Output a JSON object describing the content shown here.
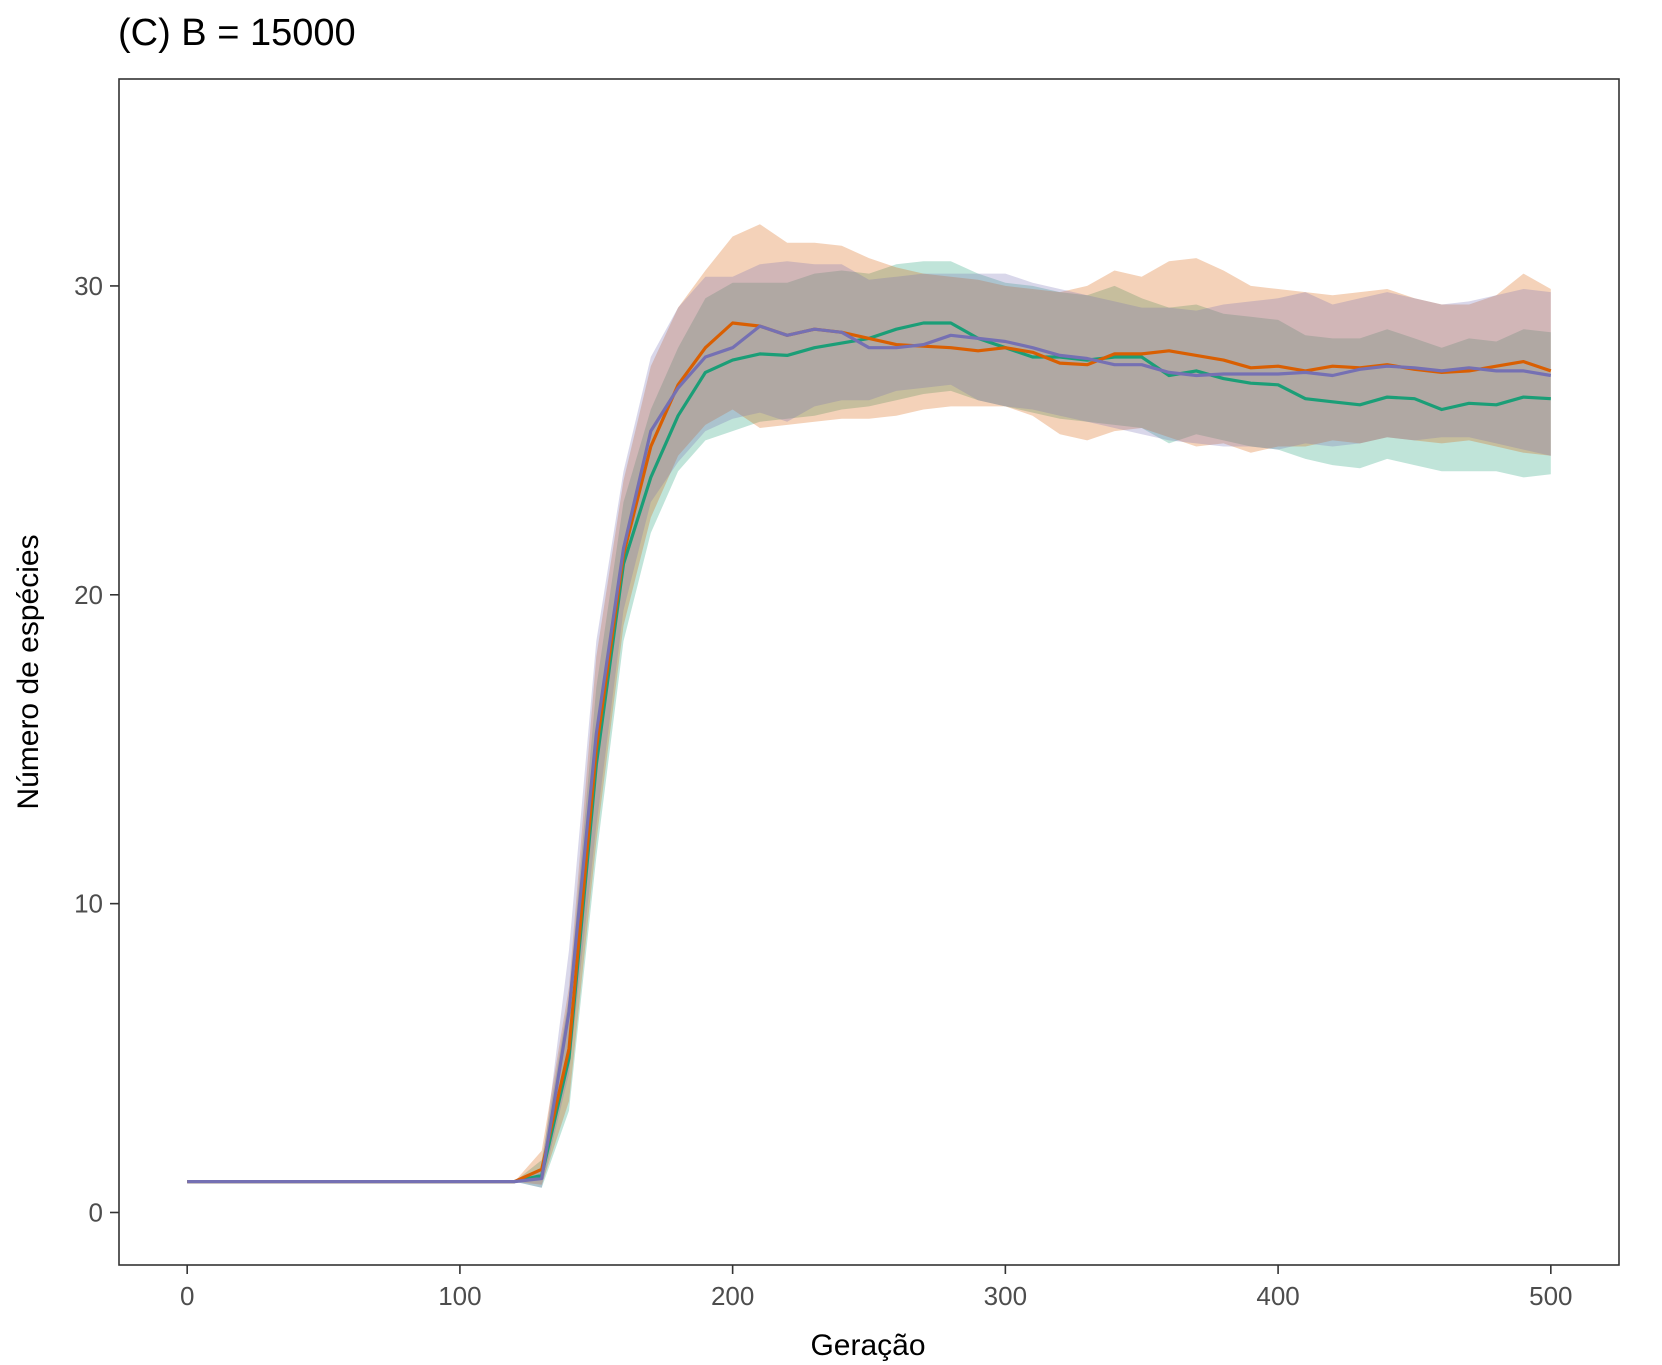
{
  "chart_data": {
    "type": "line",
    "title": "(C) B = 15000",
    "xlabel": "Geração",
    "ylabel": "Número de espécies",
    "xlim": [
      -25,
      525
    ],
    "ylim": [
      -1.7,
      36.7
    ],
    "xticks": [
      0,
      100,
      200,
      300,
      400,
      500
    ],
    "yticks": [
      0,
      10,
      20,
      30
    ],
    "xtick_labels": [
      "0",
      "100",
      "200",
      "300",
      "400",
      "500"
    ],
    "ytick_labels": [
      "0",
      "10",
      "20",
      "30"
    ],
    "grid": false,
    "legend": "none",
    "x": [
      0,
      10,
      20,
      30,
      40,
      50,
      60,
      70,
      80,
      90,
      100,
      110,
      120,
      130,
      140,
      150,
      160,
      170,
      180,
      190,
      200,
      210,
      220,
      230,
      240,
      250,
      260,
      270,
      280,
      290,
      300,
      310,
      320,
      330,
      340,
      350,
      360,
      370,
      380,
      390,
      400,
      410,
      420,
      430,
      440,
      450,
      460,
      470,
      480,
      490,
      500
    ],
    "series": [
      {
        "color": "#1b9e77",
        "values": [
          1,
          1,
          1,
          1,
          1,
          1,
          1,
          1,
          1,
          1,
          1,
          1,
          1,
          1.2,
          5,
          14.5,
          21,
          23.8,
          25.8,
          27.2,
          27.6,
          27.8,
          27.75,
          28,
          28.15,
          28.3,
          28.6,
          28.8,
          28.8,
          28.3,
          28,
          27.7,
          27.7,
          27.6,
          27.7,
          27.7,
          27.1,
          27.25,
          27,
          26.85,
          26.8,
          26.35,
          26.25,
          26.15,
          26.4,
          26.35,
          26,
          26.2,
          26.15,
          26.4,
          26.35
        ],
        "lower": [
          1,
          1,
          1,
          1,
          1,
          1,
          1,
          1,
          1,
          1,
          1,
          1,
          1,
          0.8,
          3.3,
          11.5,
          18.5,
          22,
          24,
          25,
          25.3,
          25.6,
          25.7,
          25.8,
          26,
          26.1,
          26.3,
          26.5,
          26.6,
          26.3,
          26.1,
          25.9,
          25.7,
          25.6,
          25.5,
          25.4,
          24.9,
          25.2,
          25,
          24.8,
          24.7,
          24.4,
          24.2,
          24.1,
          24.4,
          24.2,
          24,
          24,
          24,
          23.8,
          23.9
        ],
        "upper": [
          1,
          1,
          1,
          1,
          1,
          1,
          1,
          1,
          1,
          1,
          1,
          1,
          1,
          1.7,
          7,
          17,
          23,
          26,
          28,
          29.6,
          30.1,
          30.1,
          30.1,
          30.4,
          30.5,
          30.4,
          30.7,
          30.8,
          30.8,
          30.4,
          30.1,
          30,
          29.8,
          29.7,
          30,
          29.6,
          29.3,
          29.4,
          29.1,
          29,
          28.9,
          28.4,
          28.3,
          28.3,
          28.6,
          28.3,
          28,
          28.3,
          28.2,
          28.6,
          28.5
        ]
      },
      {
        "color": "#d95f02",
        "values": [
          1,
          1,
          1,
          1,
          1,
          1,
          1,
          1,
          1,
          1,
          1,
          1,
          1,
          1.4,
          5.3,
          15,
          21.3,
          24.8,
          26.8,
          28,
          28.8,
          28.7,
          28.4,
          28.6,
          28.5,
          28.3,
          28.1,
          28.05,
          28,
          27.9,
          28,
          27.85,
          27.5,
          27.45,
          27.8,
          27.8,
          27.9,
          27.75,
          27.6,
          27.35,
          27.4,
          27.25,
          27.4,
          27.35,
          27.45,
          27.3,
          27.2,
          27.25,
          27.4,
          27.55,
          27.25
        ],
        "lower": [
          1,
          1,
          1,
          1,
          1,
          1,
          1,
          1,
          1,
          1,
          1,
          1,
          1,
          0.9,
          3.6,
          12,
          19,
          22.5,
          24.5,
          25.5,
          26,
          25.4,
          25.5,
          25.6,
          25.7,
          25.7,
          25.8,
          26,
          26.1,
          26.1,
          26.1,
          25.8,
          25.2,
          25,
          25.3,
          25.4,
          25.1,
          24.8,
          24.9,
          24.6,
          24.8,
          24.8,
          25,
          24.9,
          25.1,
          25,
          24.9,
          25,
          24.8,
          24.6,
          24.5
        ],
        "upper": [
          1,
          1,
          1,
          1,
          1,
          1,
          1,
          1,
          1,
          1,
          1,
          1,
          1,
          2,
          7.3,
          18,
          23.7,
          27.4,
          29.3,
          30.5,
          31.6,
          32,
          31.4,
          31.4,
          31.3,
          30.9,
          30.6,
          30.4,
          30.3,
          30.2,
          30,
          29.9,
          29.8,
          30,
          30.5,
          30.3,
          30.8,
          30.9,
          30.5,
          30,
          29.9,
          29.8,
          29.7,
          29.8,
          29.9,
          29.6,
          29.4,
          29.4,
          29.7,
          30.4,
          29.9
        ]
      },
      {
        "color": "#7570b3",
        "values": [
          1,
          1,
          1,
          1,
          1,
          1,
          1,
          1,
          1,
          1,
          1,
          1,
          1,
          1.1,
          6.5,
          15.5,
          21.5,
          25.3,
          26.7,
          27.7,
          28,
          28.7,
          28.4,
          28.6,
          28.5,
          28,
          28,
          28.1,
          28.4,
          28.3,
          28.2,
          28,
          27.75,
          27.65,
          27.45,
          27.45,
          27.2,
          27.1,
          27.15,
          27.15,
          27.15,
          27.2,
          27.1,
          27.3,
          27.4,
          27.35,
          27.25,
          27.35,
          27.25,
          27.25,
          27.1
        ],
        "lower": [
          1,
          1,
          1,
          1,
          1,
          1,
          1,
          1,
          1,
          1,
          1,
          1,
          1,
          0.8,
          4.5,
          12.5,
          19.5,
          23,
          24.3,
          25.3,
          25.7,
          25.9,
          25.6,
          26.1,
          26.3,
          26.3,
          26.6,
          26.7,
          26.8,
          26.3,
          26.1,
          26,
          25.8,
          25.6,
          25.4,
          25.2,
          25,
          24.9,
          24.8,
          24.8,
          24.7,
          24.9,
          24.8,
          24.9,
          25.1,
          25,
          25.1,
          25.1,
          24.9,
          24.7,
          24.5
        ],
        "upper": [
          1,
          1,
          1,
          1,
          1,
          1,
          1,
          1,
          1,
          1,
          1,
          1,
          1,
          1.4,
          8.5,
          18.5,
          24,
          27.7,
          29.3,
          30.3,
          30.3,
          30.7,
          30.8,
          30.7,
          30.7,
          30.2,
          30.3,
          30.4,
          30.4,
          30.4,
          30.4,
          30.1,
          29.9,
          29.7,
          29.5,
          29.3,
          29.3,
          29.2,
          29.4,
          29.5,
          29.6,
          29.8,
          29.4,
          29.6,
          29.8,
          29.6,
          29.4,
          29.5,
          29.7,
          29.9,
          29.8
        ]
      }
    ]
  }
}
